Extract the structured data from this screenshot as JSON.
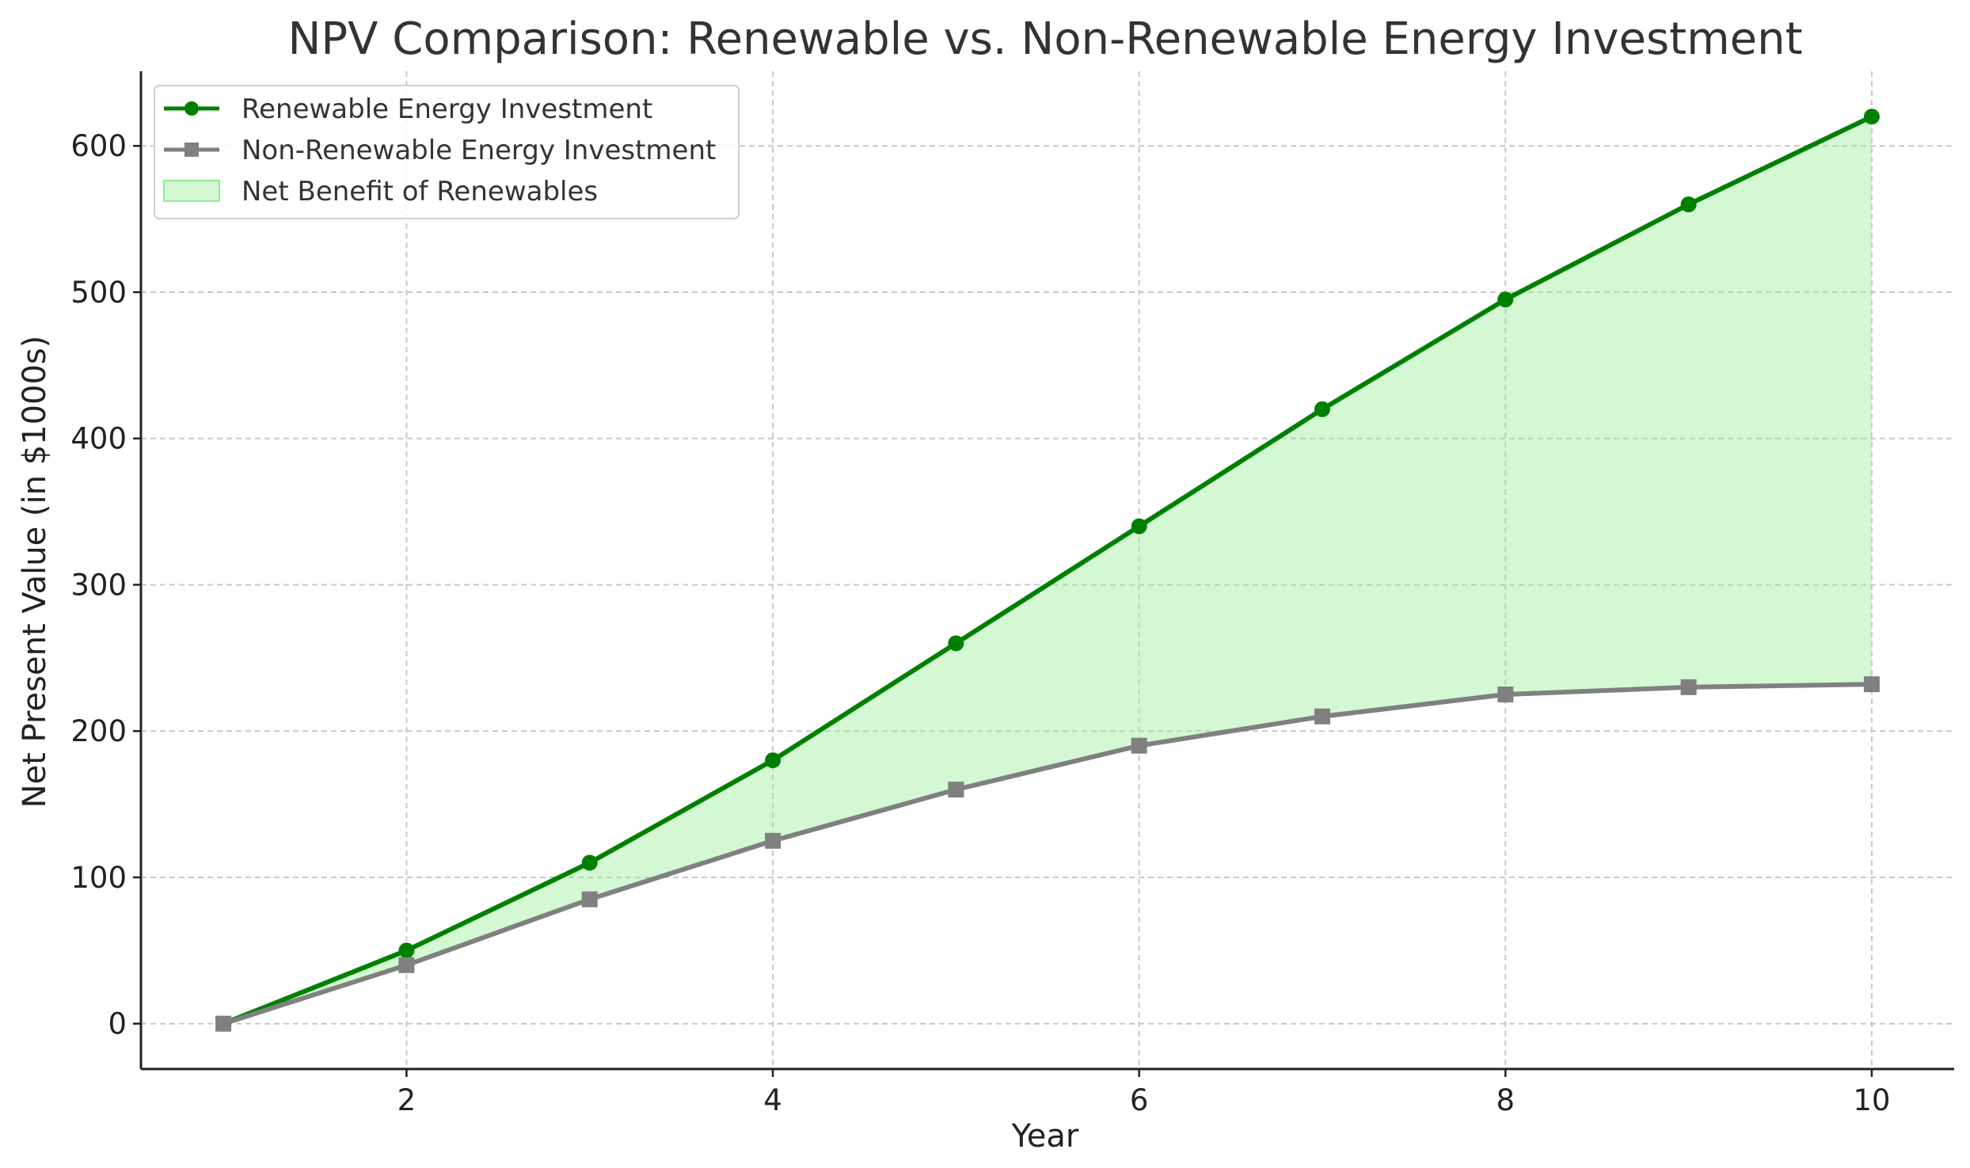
{
  "chart_data": {
    "type": "line",
    "title": "NPV Comparison: Renewable vs. Non-Renewable Energy Investment",
    "xlabel": "Year",
    "ylabel": "Net Present Value (in $1000s)",
    "xlim": [
      0.55,
      10.45
    ],
    "ylim": [
      -31,
      651
    ],
    "x_ticks": [
      2,
      4,
      6,
      8,
      10
    ],
    "y_ticks": [
      0,
      100,
      200,
      300,
      400,
      500,
      600
    ],
    "grid": true,
    "legend_position": "top-left",
    "x": [
      1,
      2,
      3,
      4,
      5,
      6,
      7,
      8,
      9,
      10
    ],
    "series": [
      {
        "name": "Renewable Energy Investment",
        "color": "#008000",
        "marker": "circle",
        "values": [
          0,
          50,
          110,
          180,
          260,
          340,
          420,
          495,
          560,
          620
        ]
      },
      {
        "name": "Non-Renewable Energy Investment",
        "color": "#808080",
        "marker": "square",
        "values": [
          0,
          40,
          85,
          125,
          160,
          190,
          210,
          225,
          230,
          232
        ]
      }
    ],
    "fill_between": {
      "name": "Net Benefit of Renewables",
      "color": "#90ee90",
      "opacity": 0.4,
      "between": [
        "Renewable Energy Investment",
        "Non-Renewable Energy Investment"
      ]
    }
  }
}
